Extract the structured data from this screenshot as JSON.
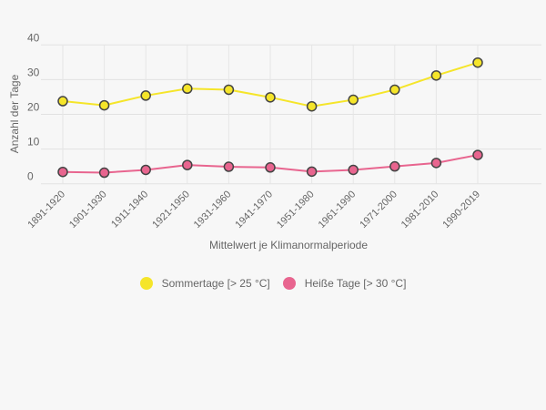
{
  "chart_data": {
    "type": "line",
    "title": "",
    "xlabel": "Mittelwert je Klimanormalperiode",
    "ylabel": "Anzahl der Tage",
    "ylim": [
      0,
      40
    ],
    "yticks": [
      "0",
      "10",
      "20",
      "30",
      "40"
    ],
    "categories": [
      "1891-1920",
      "1901-1930",
      "1911-1940",
      "1921-1950",
      "1931-1960",
      "1941-1970",
      "1951-1980",
      "1961-1990",
      "1971-2000",
      "1981-2010",
      "1990-2019"
    ],
    "series": [
      {
        "name": "Sommertage [> 25 °C]",
        "color": "#f5e52a",
        "values": [
          23.8,
          22.6,
          25.4,
          27.4,
          27.1,
          24.9,
          22.3,
          24.2,
          27.1,
          31.2,
          34.9
        ]
      },
      {
        "name": "Heiße Tage [> 30 °C]",
        "color": "#e8658f",
        "values": [
          3.4,
          3.2,
          4.0,
          5.4,
          4.9,
          4.7,
          3.5,
          4.0,
          5.0,
          6.0,
          8.3
        ]
      }
    ],
    "grid": true,
    "legend": "bottom-center"
  }
}
